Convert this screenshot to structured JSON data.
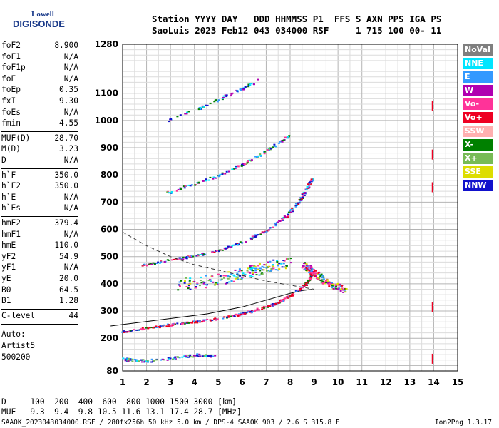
{
  "logo": {
    "line1": "Lowell",
    "line2": "DIGISONDE"
  },
  "header": {
    "row1": "Station YYYY DAY   DDD HHMMSS P1  FFS S AXN PPS IGA PS",
    "row2": "SaoLuis 2023 Feb12 043 034000 RSF     1 715 100 00- 11"
  },
  "params": [
    {
      "group": [
        {
          "k": "foF2",
          "v": "8.900"
        },
        {
          "k": "foF1",
          "v": "N/A"
        },
        {
          "k": "foF1p",
          "v": "N/A"
        },
        {
          "k": "foE",
          "v": "N/A"
        },
        {
          "k": "foEp",
          "v": "0.35"
        },
        {
          "k": "fxI",
          "v": "9.30"
        },
        {
          "k": "foEs",
          "v": "N/A"
        },
        {
          "k": "fmin",
          "v": "4.55"
        }
      ]
    },
    {
      "group": [
        {
          "k": "MUF(D)",
          "v": "28.70"
        },
        {
          "k": "M(D)",
          "v": "3.23"
        },
        {
          "k": "D",
          "v": "N/A"
        }
      ]
    },
    {
      "group": [
        {
          "k": "h`F",
          "v": "350.0"
        },
        {
          "k": "h`F2",
          "v": "350.0"
        },
        {
          "k": "h`E",
          "v": "N/A"
        },
        {
          "k": "h`Es",
          "v": "N/A"
        }
      ]
    },
    {
      "group": [
        {
          "k": "hmF2",
          "v": "379.4"
        },
        {
          "k": "hmF1",
          "v": "N/A"
        },
        {
          "k": "hmE",
          "v": "110.0"
        },
        {
          "k": "yF2",
          "v": "54.9"
        },
        {
          "k": "yF1",
          "v": "N/A"
        },
        {
          "k": "yE",
          "v": "20.0"
        },
        {
          "k": "B0",
          "v": "64.5"
        },
        {
          "k": "B1",
          "v": "1.28"
        }
      ]
    },
    {
      "group": [
        {
          "k": "C-level",
          "v": "44"
        }
      ]
    }
  ],
  "auto": {
    "line1": "Auto:",
    "line2": "Artist5",
    "line3": "500200"
  },
  "legend": [
    {
      "label": "NoVal",
      "color": "#7f7f7f"
    },
    {
      "label": "NNE",
      "color": "#00e5ff"
    },
    {
      "label": "E",
      "color": "#3399ff"
    },
    {
      "label": "W",
      "color": "#b000b0"
    },
    {
      "label": "Vo-",
      "color": "#ff3399"
    },
    {
      "label": "Vo+",
      "color": "#ee0022"
    },
    {
      "label": "SSW",
      "color": "#ffb0b0"
    },
    {
      "label": "X-",
      "color": "#008000"
    },
    {
      "label": "X+",
      "color": "#77bb55"
    },
    {
      "label": "SSE",
      "color": "#dddd00"
    },
    {
      "label": "NNW",
      "color": "#1111cc"
    }
  ],
  "bottom": {
    "row1": "D     100  200  400  600  800 1000 1500 3000 [km]",
    "row2": "MUF   9.3  9.4  9.8 10.5 11.6 13.1 17.4 28.7 [MHz]"
  },
  "footer": {
    "left": "SAAOK_2023043034000.RSF / 280fx256h 50 kHz 5.0 km / DPS-4 SAAOK 903 / 2.6 S 315.8 E",
    "right": "Ion2Png 1.3.17"
  },
  "chart_data": {
    "type": "scatter",
    "x_ticks": [
      "1",
      "2",
      "3",
      "4",
      "5",
      "6",
      "7",
      "8",
      "9",
      "10",
      "11",
      "12",
      "13",
      "14",
      "15"
    ],
    "y_ticks": [
      "80",
      "200",
      "300",
      "400",
      "500",
      "600",
      "700",
      "800",
      "900",
      "1000",
      "1100",
      "1280"
    ],
    "xlim": [
      1,
      15
    ],
    "ylim": [
      80,
      1280
    ],
    "grid": true,
    "series": [
      {
        "name": "profile",
        "x": [
          0.5,
          4.55,
          6,
          7,
          8,
          8.5,
          8.9
        ],
        "y": [
          245,
          290,
          315,
          340,
          365,
          375,
          379.4
        ]
      },
      {
        "name": "trace-O",
        "x": [
          1.0,
          2.0,
          3.0,
          4.0,
          5.0,
          6.0,
          7.0,
          7.5,
          8.0,
          8.5,
          8.8,
          8.9
        ],
        "y": [
          225,
          240,
          252,
          262,
          275,
          292,
          318,
          335,
          360,
          390,
          420,
          450
        ]
      },
      {
        "name": "trace-O2",
        "x": [
          1.8,
          3.0,
          4.0,
          5.0,
          6.0,
          7.0,
          7.8,
          8.3,
          8.6,
          8.9
        ],
        "y": [
          470,
          490,
          505,
          525,
          555,
          600,
          650,
          700,
          740,
          790
        ]
      },
      {
        "name": "trace-O3",
        "x": [
          2.8,
          4.0,
          5.0,
          6.0,
          7.0,
          7.5,
          8.0
        ],
        "y": [
          735,
          770,
          800,
          840,
          890,
          920,
          950
        ]
      },
      {
        "name": "trace-O4",
        "x": [
          2.8,
          4.0,
          5.0,
          6.0,
          6.6
        ],
        "y": [
          1000,
          1040,
          1080,
          1120,
          1150
        ]
      },
      {
        "name": "Es-trace",
        "x": [
          1.0,
          2.0,
          3.0,
          4.0,
          4.8
        ],
        "y": [
          125,
          118,
          128,
          140,
          138
        ]
      },
      {
        "name": "cusp",
        "x": [
          8.5,
          9.0,
          9.6,
          10.3
        ],
        "y": [
          470,
          440,
          400,
          380
        ]
      },
      {
        "name": "spread",
        "x": [
          3.3,
          4.5,
          5.5,
          6.5,
          7.3,
          8.0
        ],
        "y": [
          400,
          410,
          430,
          450,
          470,
          480
        ]
      },
      {
        "name": "MUF-curve",
        "x": [
          1.0,
          2.0,
          3.0,
          4.0,
          5.0,
          6.0,
          7.0,
          8.0,
          9.0
        ],
        "y": [
          590,
          540,
          500,
          470,
          450,
          430,
          410,
          395,
          380
        ]
      },
      {
        "name": "X-trace-14",
        "x": [
          13.95,
          13.95,
          13.95,
          13.95,
          13.95
        ],
        "y": [
          1060,
          880,
          760,
          320,
          130
        ]
      }
    ]
  }
}
